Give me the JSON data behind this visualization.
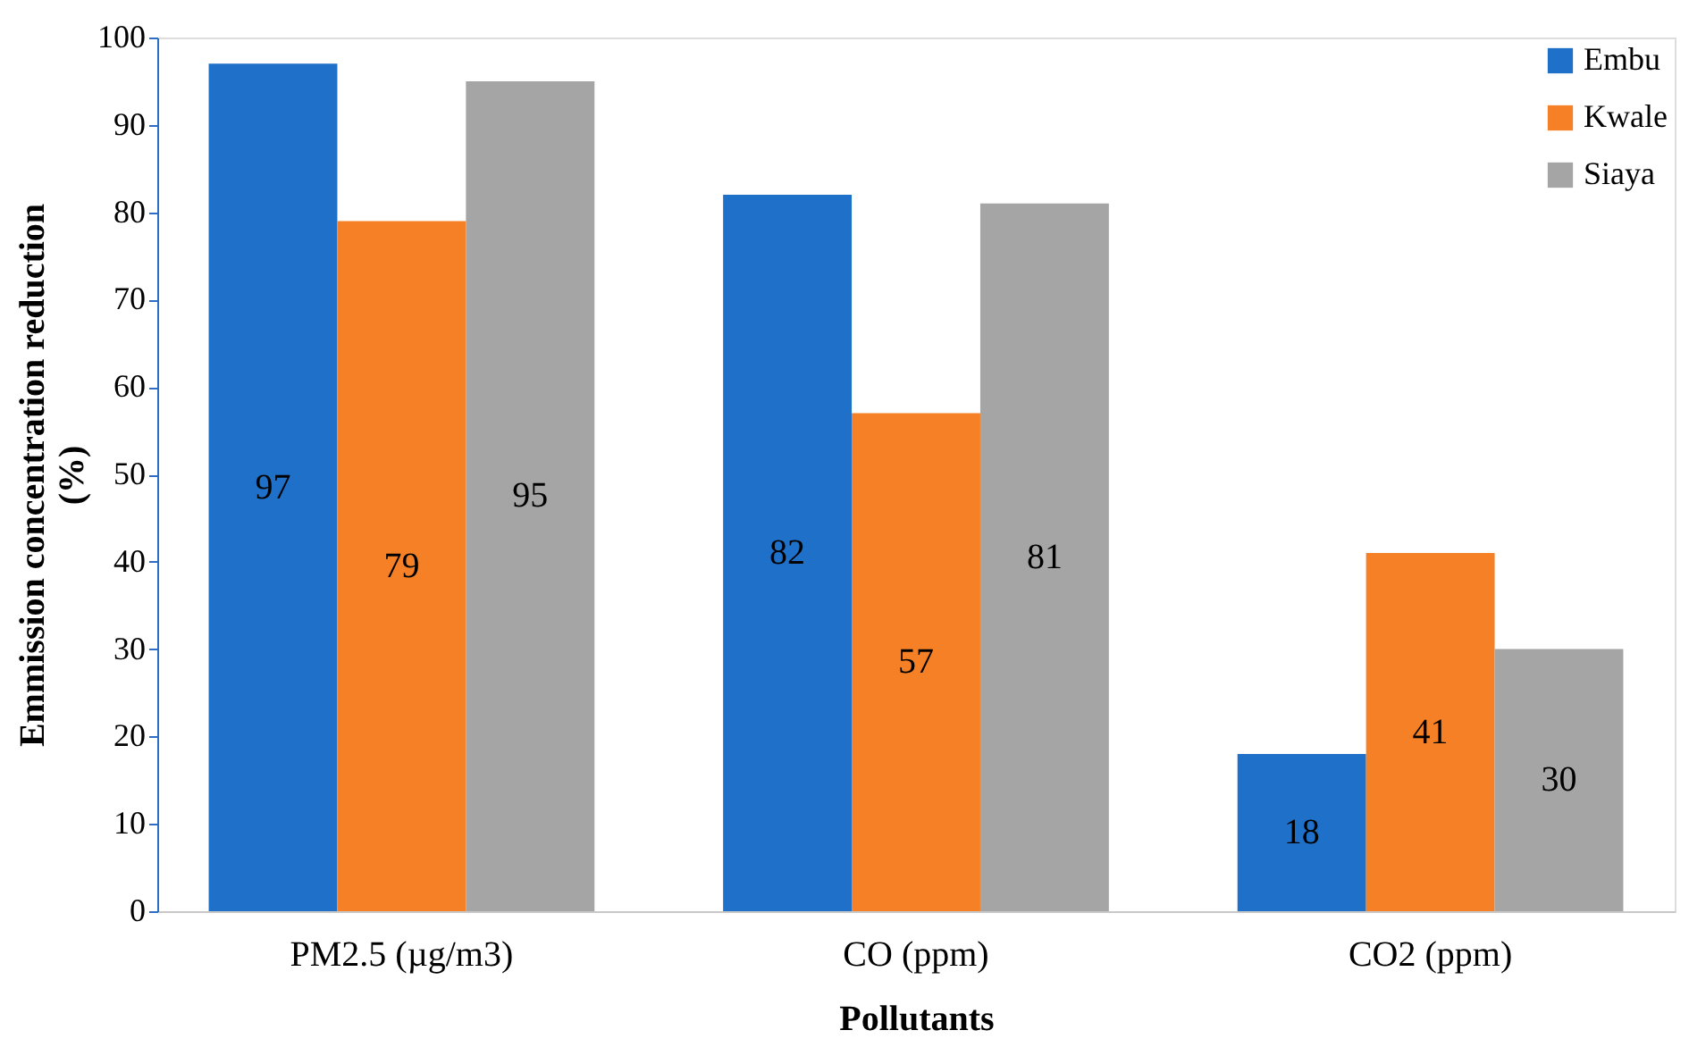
{
  "chart_data": {
    "type": "bar",
    "xlabel": "Pollutants",
    "ylabel": "Emmission concentration reduction (%)",
    "categories": [
      "PM2.5 (µg/m3)",
      "CO (ppm)",
      "CO2 (ppm)"
    ],
    "series": [
      {
        "name": "Embu",
        "color": "#1f70c8",
        "values": [
          97,
          82,
          18
        ]
      },
      {
        "name": "Kwale",
        "color": "#f58025",
        "values": [
          79,
          57,
          41
        ]
      },
      {
        "name": "Siaya",
        "color": "#a5a5a5",
        "values": [
          95,
          81,
          30
        ]
      }
    ],
    "ylim": [
      0,
      100
    ],
    "yticks": [
      0,
      10,
      20,
      30,
      40,
      50,
      60,
      70,
      80,
      90,
      100
    ],
    "grid": false,
    "legend": "top right",
    "data_labels": true
  }
}
